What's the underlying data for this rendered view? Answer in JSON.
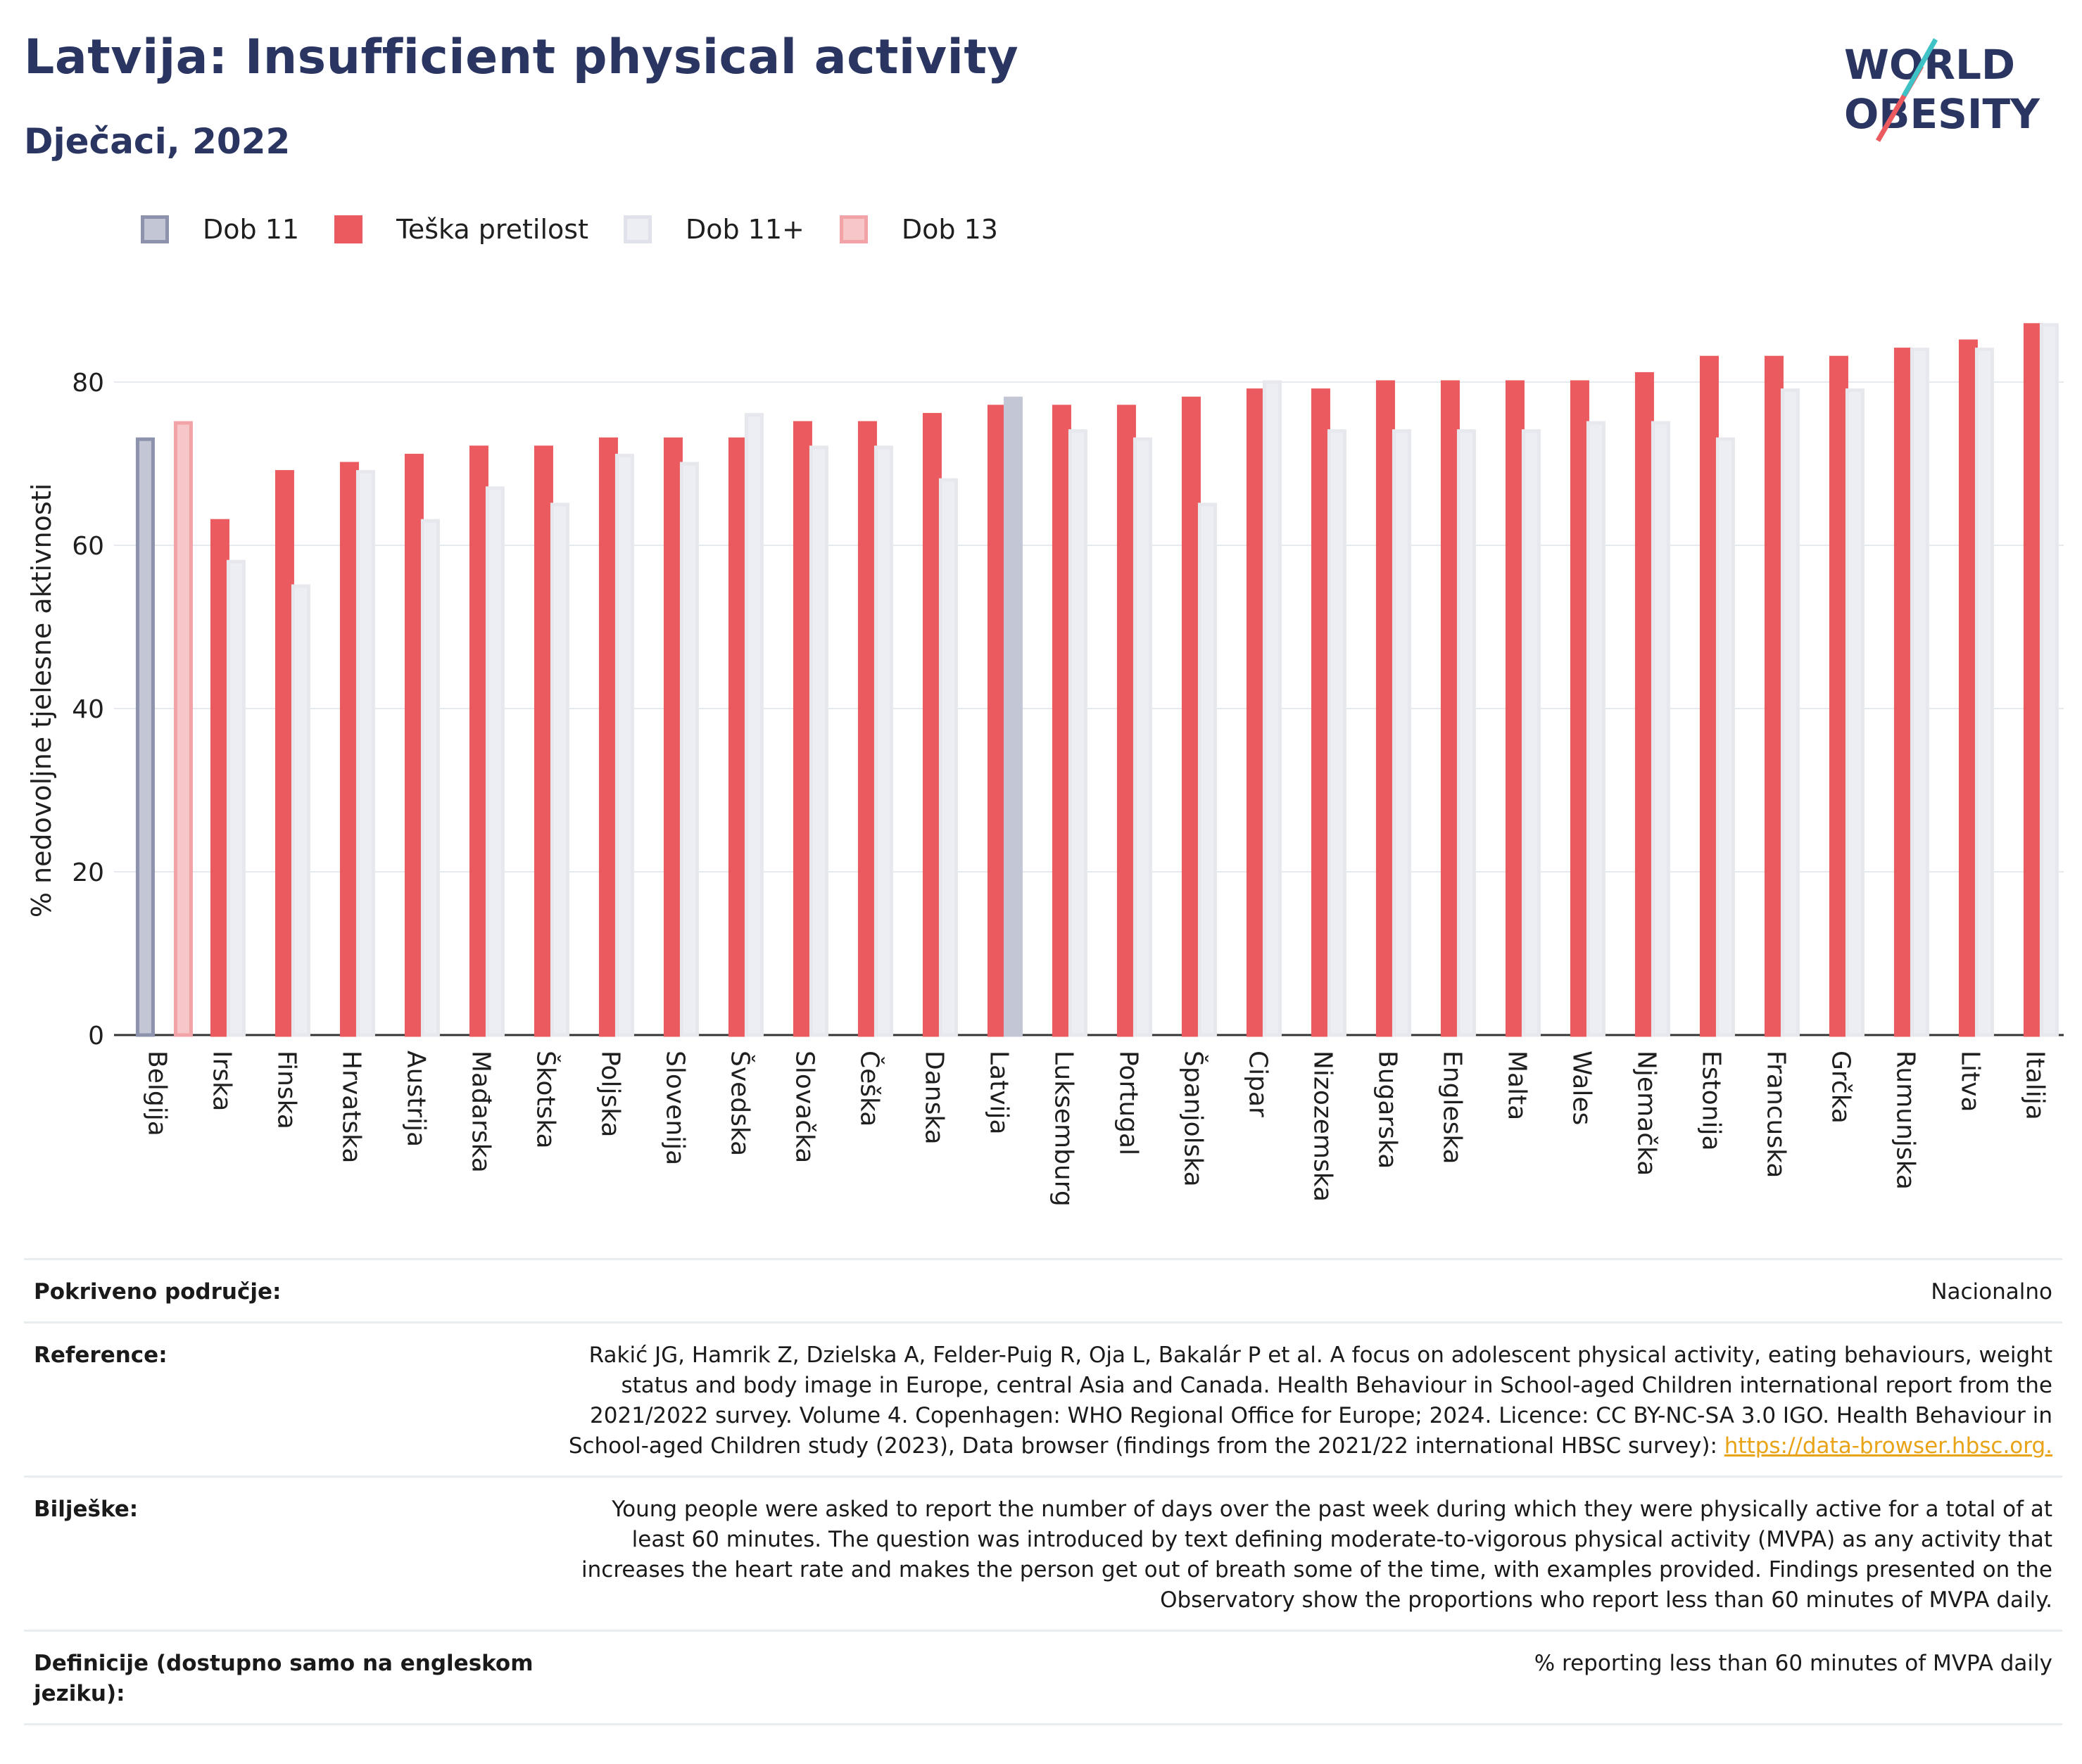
{
  "header": {
    "title": "Latvija: Insufficient physical activity",
    "subtitle": "Dječaci, 2022"
  },
  "logo": {
    "line1": "WORLD",
    "line2": "OBESITY"
  },
  "legend": [
    {
      "label": "Dob 11",
      "color": "#c3c6d4",
      "border": "#8e93ad"
    },
    {
      "label": "Teška pretilost",
      "color": "#ea5a5f",
      "border": "#ea5a5f"
    },
    {
      "label": "Dob 11+",
      "color": "#eceef3",
      "border": "#dfe2ea"
    },
    {
      "label": "Dob 13",
      "color": "#f7c6c8",
      "border": "#f2a3a7"
    }
  ],
  "chart_data": {
    "type": "bar",
    "ylabel": "% nedovoljne tjelesne aktivnosti",
    "ylim": [
      0,
      90
    ],
    "yticks": [
      0,
      20,
      40,
      60,
      80
    ],
    "grid": true,
    "categories": [
      "Belgija",
      "Irska",
      "Finska",
      "Hrvatska",
      "Austrija",
      "Mađarska",
      "Škotska",
      "Poljska",
      "Slovenija",
      "Švedska",
      "Slovačka",
      "Češka",
      "Danska",
      "Latvija",
      "Luksemburg",
      "Portugal",
      "Španjolska",
      "Cipar",
      "Nizozemska",
      "Bugarska",
      "Engleska",
      "Malta",
      "Wales",
      "Njemačka",
      "Estonija",
      "Francuska",
      "Grčka",
      "Rumunjska",
      "Litva",
      "Italija"
    ],
    "series": [
      {
        "name": "Dob 11",
        "values": [
          73,
          null,
          null,
          null,
          null,
          null,
          null,
          null,
          null,
          null,
          null,
          null,
          null,
          null,
          null,
          null,
          null,
          null,
          null,
          null,
          null,
          null,
          null,
          null,
          null,
          null,
          null,
          null,
          null,
          null
        ]
      },
      {
        "name": "Dob 13",
        "values": [
          75,
          null,
          null,
          null,
          null,
          null,
          null,
          null,
          null,
          null,
          null,
          null,
          null,
          null,
          null,
          null,
          null,
          null,
          null,
          null,
          null,
          null,
          null,
          null,
          null,
          null,
          null,
          null,
          null,
          null
        ]
      },
      {
        "name": "Teška pretilost",
        "values": [
          null,
          63,
          69,
          70,
          71,
          72,
          72,
          73,
          73,
          73,
          75,
          75,
          76,
          77,
          77,
          77,
          78,
          79,
          79,
          80,
          80,
          80,
          80,
          81,
          83,
          83,
          83,
          84,
          85,
          87
        ]
      },
      {
        "name": "Dob 11+",
        "values": [
          null,
          58,
          55,
          69,
          63,
          67,
          65,
          71,
          70,
          76,
          72,
          72,
          68,
          78,
          74,
          73,
          65,
          80,
          74,
          74,
          74,
          74,
          75,
          75,
          73,
          79,
          79,
          84,
          84,
          87
        ]
      }
    ],
    "highlight": {
      "category": "Latvija",
      "series": "Dob 11+",
      "color": "#c3c6d4"
    }
  },
  "info": [
    {
      "label": "Pokriveno područje:",
      "value": "Nacionalno"
    },
    {
      "label": "Reference:",
      "value": "Rakić JG, Hamrik Z, Dzielska A, Felder-Puig R, Oja L, Bakalár P et al. A focus on adolescent physical activity, eating behaviours, weight status and body image in Europe, central Asia and Canada. Health Behaviour in School-aged Children international report from the 2021/2022 survey. Volume 4. Copenhagen: WHO Regional Office for Europe; 2024. Licence: CC BY-NC-SA 3.0 IGO. Health Behaviour in School-aged Children study (2023), Data browser (findings from the 2021/22 international HBSC survey): ",
      "link": "https://data-browser.hbsc.org."
    },
    {
      "label": "Bilješke:",
      "value": "Young people were asked to report the number of days over the past week during which they were physically active for a total of at least 60 minutes. The question was introduced by text defining moderate-to-vigorous physical activity (MVPA) as any activity that increases the heart rate and makes the person get out of breath some of the time, with examples provided. Findings presented on the Observatory show the proportions who report less than 60 minutes of MVPA daily."
    },
    {
      "label": "Definicije (dostupno samo na engleskom jeziku):",
      "value": "% reporting less than 60 minutes of MVPA daily"
    }
  ]
}
